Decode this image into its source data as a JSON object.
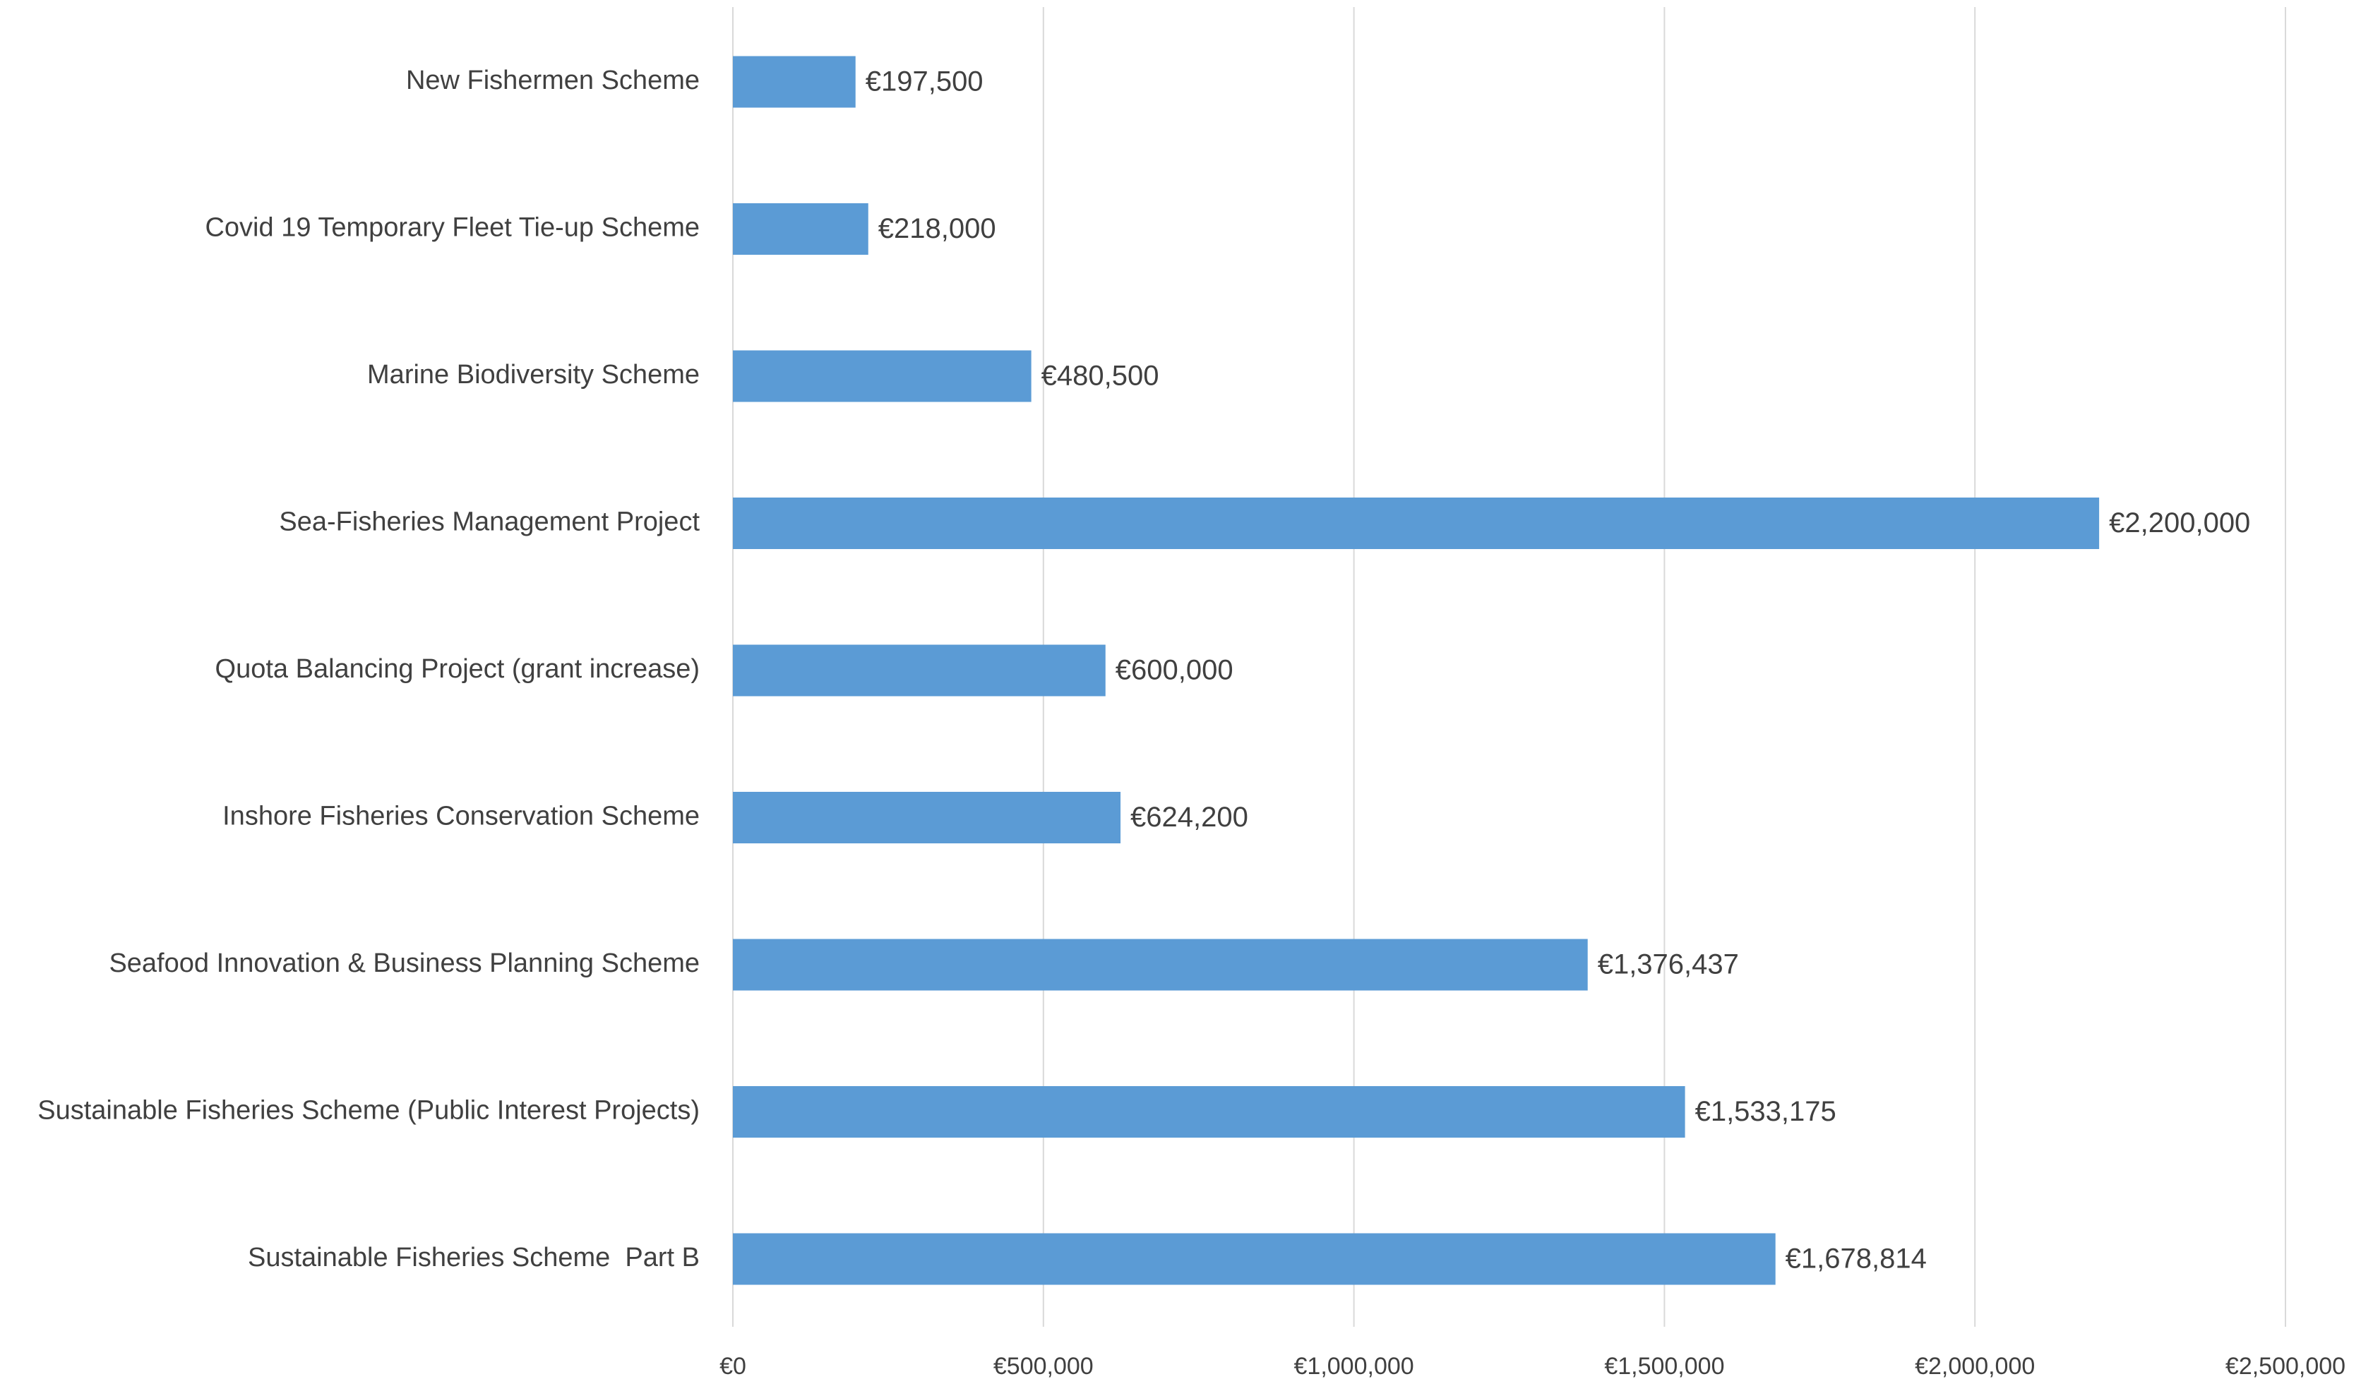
{
  "chart_data": {
    "type": "barh",
    "categories": [
      "New Fishermen Scheme",
      "Covid 19 Temporary Fleet Tie-up Scheme",
      "Marine Biodiversity Scheme",
      "Sea-Fisheries Management Project",
      "Quota Balancing Project (grant increase)",
      "Inshore Fisheries Conservation Scheme",
      "Seafood Innovation & Business Planning Scheme",
      "Sustainable Fisheries Scheme (Public Interest Projects)",
      "Sustainable Fisheries Scheme  Part B"
    ],
    "values": [
      197500,
      218000,
      480500,
      2200000,
      600000,
      624200,
      1376437,
      1533175,
      1678814
    ],
    "value_labels": [
      "€197,500",
      "€218,000",
      "€480,500",
      "€2,200,000",
      "€600,000",
      "€624,200",
      "€1,376,437",
      "€1,533,175",
      "€1,678,814"
    ],
    "color": "#5b9bd5",
    "xlim": [
      0,
      2500000
    ],
    "xticks": [
      {
        "value": 0,
        "label": "€0"
      },
      {
        "value": 500000,
        "label": "€500,000"
      },
      {
        "value": 1000000,
        "label": "€1,000,000"
      },
      {
        "value": 1500000,
        "label": "€1,500,000"
      },
      {
        "value": 2000000,
        "label": "€2,000,000"
      },
      {
        "value": 2500000,
        "label": "€2,500,000"
      }
    ],
    "grid": true
  }
}
